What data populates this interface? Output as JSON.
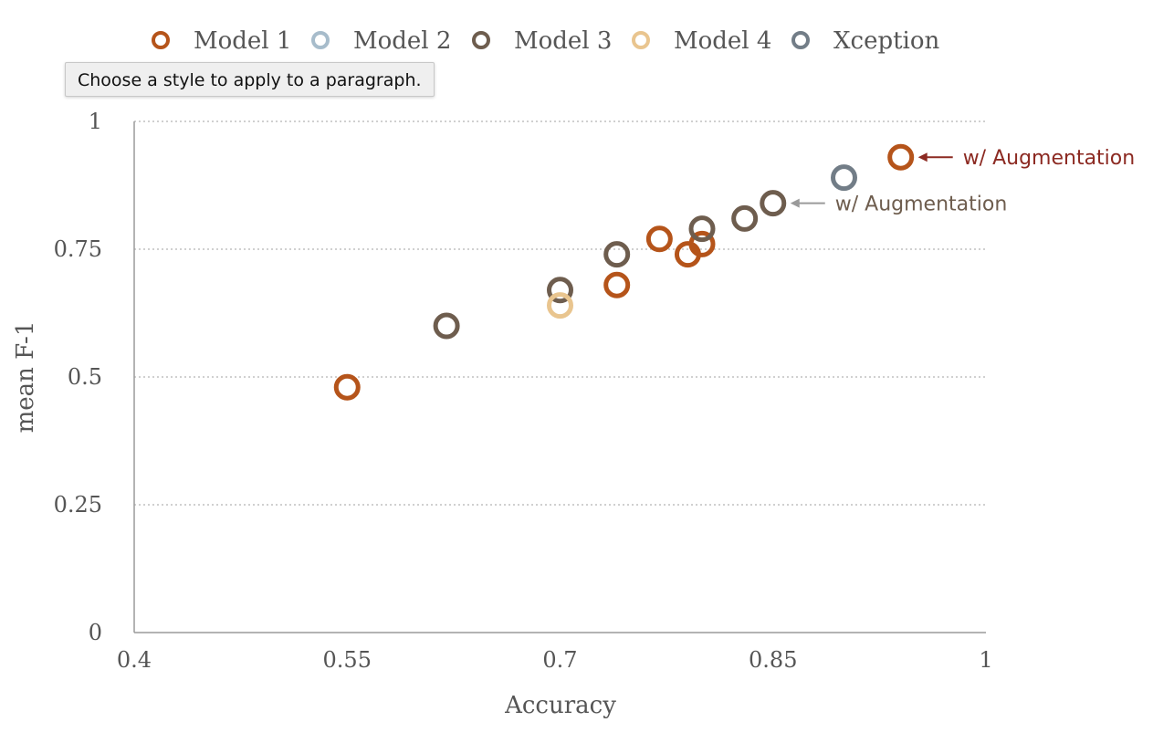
{
  "tooltip": {
    "text": "Choose a style to apply to a paragraph."
  },
  "chart_data": {
    "type": "scatter",
    "xlabel": "Accuracy",
    "ylabel": "mean F-1",
    "xlim": [
      0.4,
      1
    ],
    "ylim": [
      0,
      1
    ],
    "xticks": [
      0.4,
      0.55,
      0.7,
      0.85,
      1
    ],
    "xtick_labels": [
      "0.4",
      "0.55",
      "0.7",
      "0.85",
      "1"
    ],
    "yticks": [
      0,
      0.25,
      0.5,
      0.75,
      1
    ],
    "ytick_labels": [
      "0",
      "0.25",
      "0.5",
      "0.75",
      "1"
    ],
    "grid": "horizontal dotted",
    "legend_position": "top",
    "series": [
      {
        "name": "Model 1",
        "color": "#b5541a",
        "points": [
          [
            0.55,
            0.48
          ],
          [
            0.74,
            0.68
          ],
          [
            0.77,
            0.77
          ],
          [
            0.79,
            0.74
          ],
          [
            0.8,
            0.76
          ],
          [
            0.94,
            0.93
          ]
        ]
      },
      {
        "name": "Model 2",
        "color": "#a7bccb",
        "points": []
      },
      {
        "name": "Model 3",
        "color": "#6e5d4e",
        "points": [
          [
            0.62,
            0.6
          ],
          [
            0.7,
            0.67
          ],
          [
            0.74,
            0.74
          ],
          [
            0.8,
            0.79
          ],
          [
            0.83,
            0.81
          ],
          [
            0.85,
            0.84
          ]
        ]
      },
      {
        "name": "Model 4",
        "color": "#e9c58f",
        "points": [
          [
            0.7,
            0.64
          ]
        ]
      },
      {
        "name": "Xception",
        "color": "#727d87",
        "points": [
          [
            0.9,
            0.89
          ]
        ]
      }
    ],
    "annotations": [
      {
        "text": "w/ Augmentation",
        "x": 0.94,
        "y": 0.93,
        "color": "#8c2a22"
      },
      {
        "text": "w/ Augmentation",
        "x": 0.85,
        "y": 0.84,
        "color": "#6e5d4e",
        "arrow_color": "#9a9a9a"
      }
    ]
  }
}
